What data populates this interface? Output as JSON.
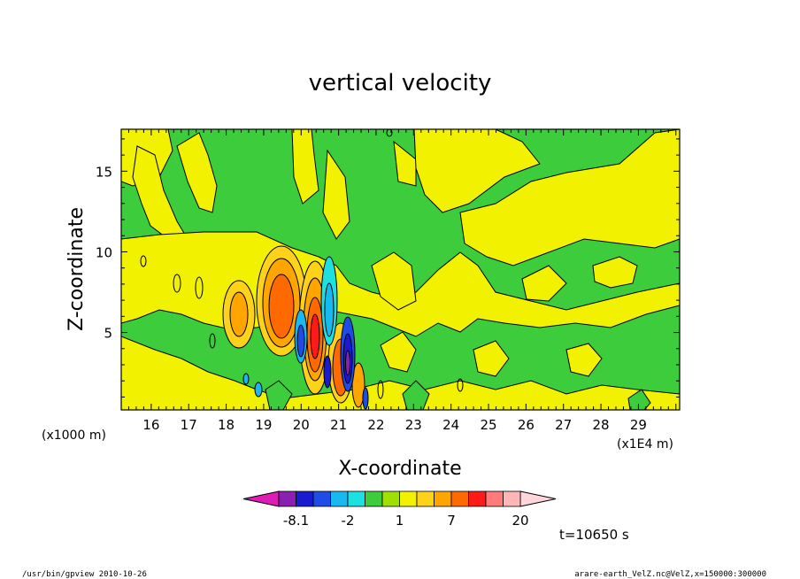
{
  "chart_data": {
    "type": "heatmap",
    "title": "vertical velocity",
    "xlabel": "X-coordinate",
    "ylabel": "Z-coordinate",
    "x_unit": "(x1E4 m)",
    "y_unit": "(x1000 m)",
    "xlim": [
      15.2,
      30.1
    ],
    "ylim": [
      0.2,
      17.6
    ],
    "x_ticks": [
      16,
      17,
      18,
      19,
      20,
      21,
      22,
      23,
      24,
      25,
      26,
      27,
      28,
      29
    ],
    "y_ticks": [
      5,
      10,
      15
    ],
    "colorbar": {
      "levels_labeled": [
        "-8.1",
        "-2",
        "1",
        "7",
        "20"
      ],
      "colors": [
        "#e01cb6",
        "#8a1fb0",
        "#1a1ad0",
        "#1d4de6",
        "#18b8f0",
        "#1fe0e0",
        "#3ccc3c",
        "#a0e000",
        "#f2f200",
        "#ffd21a",
        "#ffa500",
        "#ff6a00",
        "#ff1a1a",
        "#ff7a7a",
        "#ffb6b6",
        "#ffd6dc"
      ]
    },
    "features": [
      {
        "kind": "positive_core",
        "x": 19.3,
        "z": 6.8,
        "value": 7
      },
      {
        "kind": "positive_core",
        "x": 20.2,
        "z": 5.5,
        "value": 10
      },
      {
        "kind": "negative_core",
        "x": 20.6,
        "z": 5.0,
        "value": -5
      },
      {
        "kind": "positive_core",
        "x": 20.9,
        "z": 3.0,
        "value": 7
      },
      {
        "kind": "negative_core",
        "x": 21.2,
        "z": 4.5,
        "value": -8.1
      }
    ]
  },
  "time_label": "t=10650 s",
  "footer_left": "/usr/bin/gpview  2010-10-26",
  "footer_right": "arare-earth_VelZ.nc@VelZ,x=150000:300000"
}
